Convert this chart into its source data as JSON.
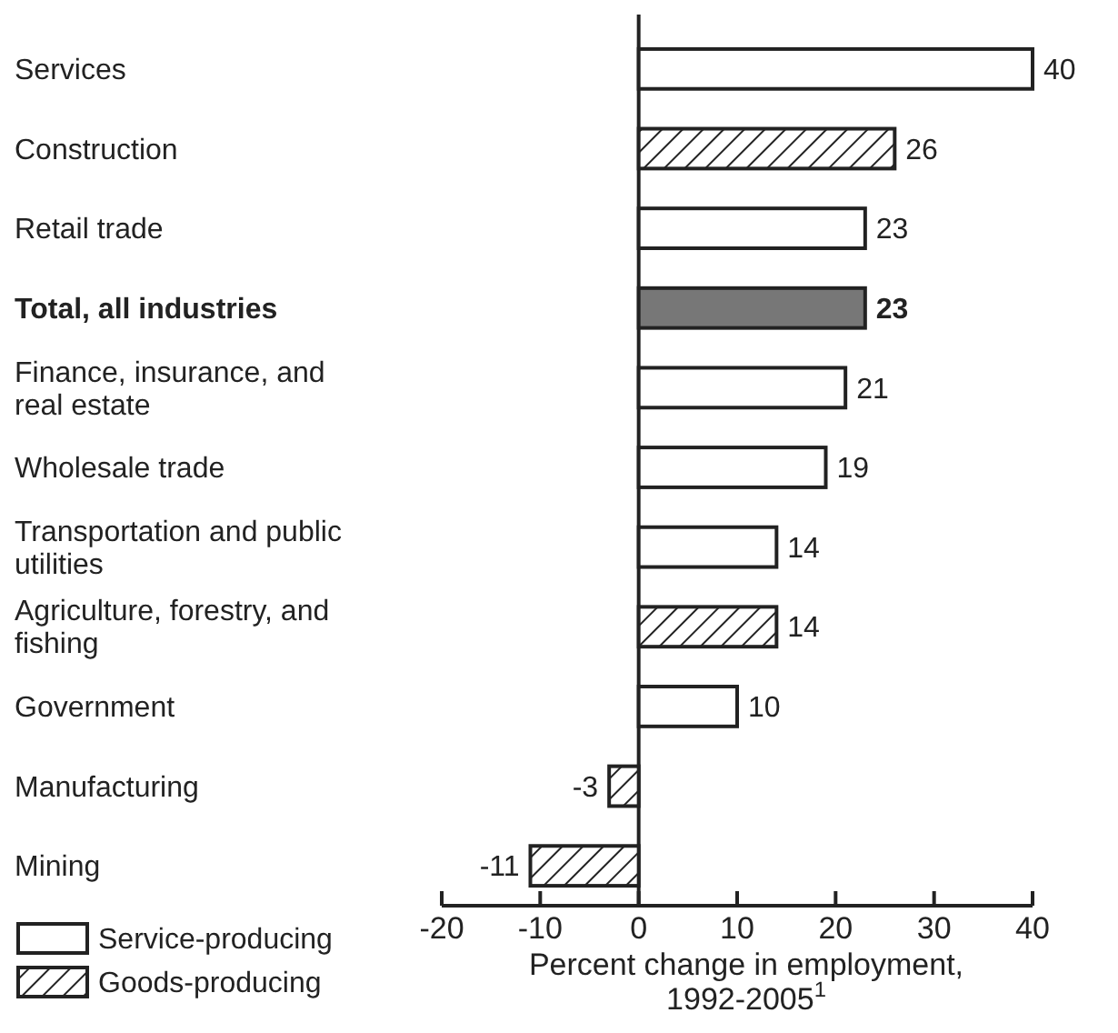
{
  "chart_data": {
    "type": "bar",
    "orientation": "horizontal",
    "categories": [
      "Services",
      "Construction",
      "Retail trade",
      "Total, all industries",
      "Finance, insurance, and real estate",
      "Wholesale trade",
      "Transportation and public utilities",
      "Agriculture, forestry, and fishing",
      "Government",
      "Manufacturing",
      "Mining"
    ],
    "series": [
      {
        "name": "Service-producing",
        "color": "#ffffff",
        "values": [
          40,
          null,
          23,
          null,
          21,
          19,
          14,
          null,
          10,
          null,
          null
        ]
      },
      {
        "name": "Goods-producing",
        "color": "#222222",
        "values": [
          null,
          26,
          null,
          null,
          null,
          null,
          null,
          14,
          null,
          -3,
          -11
        ]
      },
      {
        "color": "#777777",
        "values": [
          null,
          null,
          null,
          23,
          null,
          null,
          null,
          null,
          null,
          null,
          null
        ]
      }
    ],
    "xlim": [
      -20,
      40
    ],
    "xticks": [
      -20,
      -10,
      0,
      10,
      20,
      30,
      40
    ],
    "xlabel": "Percent change in employment,\n1992-2005$^{1}$",
    "data_labels": true,
    "legend": "bottom left"
  }
}
